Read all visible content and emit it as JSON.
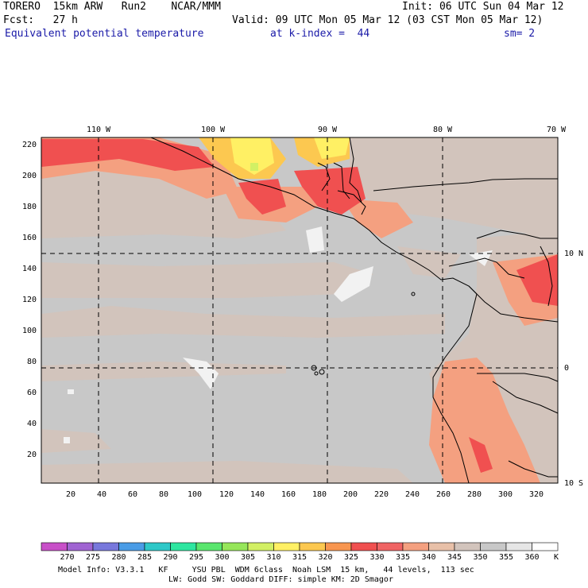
{
  "header": {
    "model": "TORERO  15km ARW   Run2    NCAR/MMM",
    "init": "Init: 06 UTC Sun 04 Mar 12",
    "fcst": "Fcst:   27 h",
    "valid": "Valid: 09 UTC Mon 05 Mar 12 (03 CST Mon 05 Mar 12)",
    "field": "Equivalent potential temperature",
    "level": "at k-index =  44",
    "smooth": "sm= 2"
  },
  "map": {
    "top_lon_labels": [
      "110 W",
      "100 W",
      "90 W",
      "80 W",
      "70 W"
    ],
    "right_lat_labels": [
      "10 N",
      "0",
      "10 S"
    ],
    "x_ticks": [
      "20",
      "40",
      "60",
      "80",
      "100",
      "120",
      "140",
      "160",
      "180",
      "200",
      "220",
      "240",
      "260",
      "280",
      "300",
      "320"
    ],
    "y_ticks": [
      "220",
      "200",
      "180",
      "160",
      "140",
      "120",
      "100",
      "80",
      "60",
      "40",
      "20"
    ],
    "dominant_value_K": 350,
    "background_color": "#c8c8c8"
  },
  "colorbar": {
    "unit": "K",
    "labels": [
      "270",
      "275",
      "280",
      "285",
      "290",
      "295",
      "300",
      "305",
      "310",
      "315",
      "320",
      "325",
      "330",
      "335",
      "340",
      "345",
      "350",
      "355",
      "360"
    ],
    "colors": [
      "#c850c8",
      "#a064d2",
      "#7878dc",
      "#4a9ce6",
      "#2ec8c8",
      "#2ee6a0",
      "#5ae66e",
      "#96e65a",
      "#d2f064",
      "#fff064",
      "#fcc850",
      "#f89650",
      "#f05050",
      "#f06464",
      "#f4a080",
      "#e8c0a8",
      "#d2c4bc",
      "#c8c8c8",
      "#e6e6e6",
      "#ffffff"
    ]
  },
  "footer": {
    "line1": "Model Info: V3.3.1   KF     YSU PBL  WDM 6class  Noah LSM  15 km,   44 levels,  113 sec",
    "line2": "LW: Godd SW: Goddard DIFF: simple KM: 2D Smagor"
  }
}
